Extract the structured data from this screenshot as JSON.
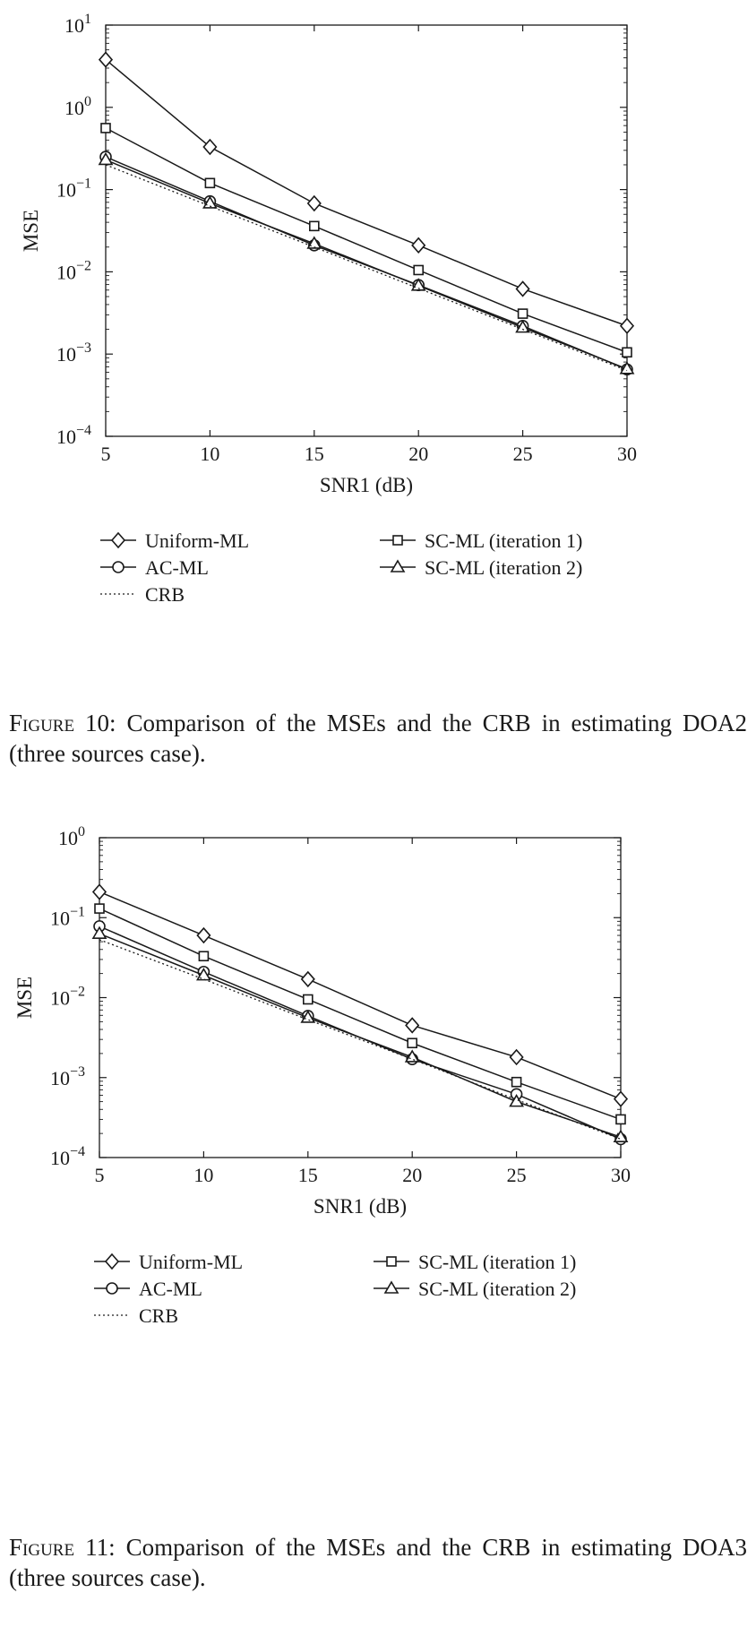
{
  "legend_labels": {
    "uniform": "Uniform-ML",
    "acml": "AC-ML",
    "crb": "CRB",
    "sc1": "SC-ML (iteration 1)",
    "sc2": "SC-ML (iteration 2)"
  },
  "figures": [
    {
      "caption_prefix": "Figure 10:",
      "caption_text": "Comparison of the MSEs and the CRB in estimating DOA2 (three sources case)."
    },
    {
      "caption_prefix": "Figure 11:",
      "caption_text": "Comparison of the MSEs and the CRB in estimating DOA3 (three sources case)."
    }
  ],
  "chart_data": [
    {
      "type": "line",
      "title": "",
      "xlabel": "SNR1 (dB)",
      "ylabel": "MSE",
      "yscale": "log",
      "xlim": [
        5,
        30
      ],
      "ylim_exp": [
        -4,
        1
      ],
      "x_ticks": [
        5,
        10,
        15,
        20,
        25,
        30
      ],
      "y_tick_exps": [
        -4,
        -3,
        -2,
        -1,
        0,
        1
      ],
      "grid": false,
      "x": [
        5,
        10,
        15,
        20,
        25,
        30
      ],
      "series": [
        {
          "key": "uniform",
          "name": "Uniform-ML",
          "marker": "diamond",
          "values": [
            3.8,
            0.33,
            0.068,
            0.021,
            0.0062,
            0.0022
          ]
        },
        {
          "key": "sc1",
          "name": "SC-ML (iteration 1)",
          "marker": "square",
          "values": [
            0.56,
            0.12,
            0.036,
            0.0105,
            0.0031,
            0.00105
          ]
        },
        {
          "key": "acml",
          "name": "AC-ML",
          "marker": "circle",
          "values": [
            0.25,
            0.072,
            0.021,
            0.0069,
            0.0022,
            0.00065
          ]
        },
        {
          "key": "sc2",
          "name": "SC-ML (iteration 2)",
          "marker": "triangle",
          "values": [
            0.23,
            0.068,
            0.022,
            0.0068,
            0.0021,
            0.00066
          ]
        },
        {
          "key": "crb",
          "name": "CRB",
          "marker": "none",
          "dotted": true,
          "values": [
            0.2,
            0.063,
            0.02,
            0.0063,
            0.002,
            0.00063
          ]
        }
      ]
    },
    {
      "type": "line",
      "title": "",
      "xlabel": "SNR1 (dB)",
      "ylabel": "MSE",
      "yscale": "log",
      "xlim": [
        5,
        30
      ],
      "ylim_exp": [
        -4,
        0
      ],
      "x_ticks": [
        5,
        10,
        15,
        20,
        25,
        30
      ],
      "y_tick_exps": [
        -4,
        -3,
        -2,
        -1,
        0
      ],
      "grid": false,
      "x": [
        5,
        10,
        15,
        20,
        25,
        30
      ],
      "series": [
        {
          "key": "uniform",
          "name": "Uniform-ML",
          "marker": "diamond",
          "values": [
            0.21,
            0.06,
            0.017,
            0.0045,
            0.0018,
            0.00054
          ]
        },
        {
          "key": "sc1",
          "name": "SC-ML (iteration 1)",
          "marker": "square",
          "values": [
            0.13,
            0.033,
            0.0095,
            0.0027,
            0.00088,
            0.0003
          ]
        },
        {
          "key": "acml",
          "name": "AC-ML",
          "marker": "circle",
          "values": [
            0.078,
            0.021,
            0.0059,
            0.0017,
            0.00062,
            0.00017
          ]
        },
        {
          "key": "sc2",
          "name": "SC-ML (iteration 2)",
          "marker": "triangle",
          "values": [
            0.063,
            0.019,
            0.0056,
            0.0018,
            0.0005,
            0.00018
          ]
        },
        {
          "key": "crb",
          "name": "CRB",
          "marker": "none",
          "dotted": true,
          "values": [
            0.053,
            0.017,
            0.0053,
            0.0017,
            0.00053,
            0.00017
          ]
        }
      ]
    }
  ]
}
